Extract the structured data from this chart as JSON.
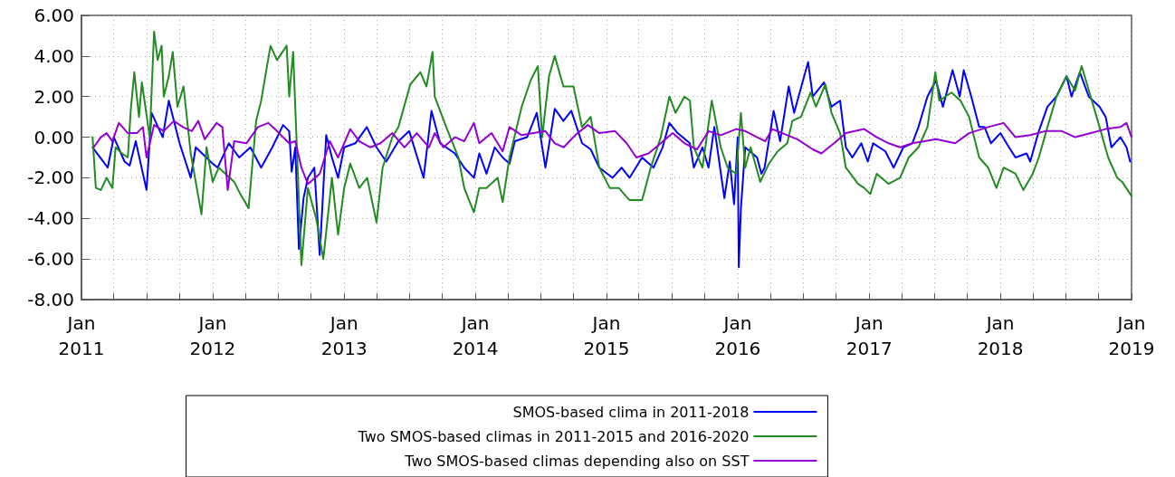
{
  "chart_data": {
    "type": "line",
    "xlim": [
      "2011-01-01",
      "2019-01-01"
    ],
    "xticks": [
      {
        "value": "2011-01-01",
        "label": "Jan 2011"
      },
      {
        "value": "2011-04-01",
        "label": null
      },
      {
        "value": "2011-07-01",
        "label": null
      },
      {
        "value": "2011-10-01",
        "label": null
      },
      {
        "value": "2012-01-01",
        "label": "Jan 2012"
      },
      {
        "value": "2012-04-01",
        "label": null
      },
      {
        "value": "2012-07-01",
        "label": null
      },
      {
        "value": "2012-10-01",
        "label": null
      },
      {
        "value": "2013-01-01",
        "label": "Jan 2013"
      },
      {
        "value": "2013-04-01",
        "label": null
      },
      {
        "value": "2013-07-01",
        "label": null
      },
      {
        "value": "2013-10-01",
        "label": null
      },
      {
        "value": "2014-01-01",
        "label": "Jan 2014"
      },
      {
        "value": "2014-04-01",
        "label": null
      },
      {
        "value": "2014-07-01",
        "label": null
      },
      {
        "value": "2014-10-01",
        "label": null
      },
      {
        "value": "2015-01-01",
        "label": "Jan 2015"
      },
      {
        "value": "2015-04-01",
        "label": null
      },
      {
        "value": "2015-07-01",
        "label": null
      },
      {
        "value": "2015-10-01",
        "label": null
      },
      {
        "value": "2016-01-01",
        "label": "Jan 2016"
      },
      {
        "value": "2016-04-01",
        "label": null
      },
      {
        "value": "2016-07-01",
        "label": null
      },
      {
        "value": "2016-10-01",
        "label": null
      },
      {
        "value": "2017-01-01",
        "label": "Jan 2017"
      },
      {
        "value": "2017-04-01",
        "label": null
      },
      {
        "value": "2017-07-01",
        "label": null
      },
      {
        "value": "2017-10-01",
        "label": null
      },
      {
        "value": "2018-01-01",
        "label": "Jan 2018"
      },
      {
        "value": "2018-04-01",
        "label": null
      },
      {
        "value": "2018-07-01",
        "label": null
      },
      {
        "value": "2018-10-01",
        "label": null
      },
      {
        "value": "2019-01-01",
        "label": "Jan 2019"
      }
    ],
    "ylim": [
      -8,
      6
    ],
    "yticks": [
      {
        "value": -8,
        "label": "-8.00"
      },
      {
        "value": -6,
        "label": "-6.00"
      },
      {
        "value": -4,
        "label": "-4.00"
      },
      {
        "value": -2,
        "label": "-2.00"
      },
      {
        "value": 0,
        "label": "0.00"
      },
      {
        "value": 2,
        "label": "2.00"
      },
      {
        "value": 4,
        "label": "4.00"
      },
      {
        "value": 6,
        "label": "6.00"
      }
    ],
    "grid": true,
    "legend": "bottom",
    "marker": "none",
    "line_style": "solid",
    "series": [
      {
        "name": "SMOS-based clima in 2011-2018",
        "color": "#0000ff",
        "x": [
          "2011-02-01",
          "2011-03-15",
          "2011-04-01",
          "2011-05-01",
          "2011-05-15",
          "2011-06-01",
          "2011-07-01",
          "2011-07-15",
          "2011-08-15",
          "2011-09-01",
          "2011-10-01",
          "2011-11-01",
          "2011-11-15",
          "2012-01-01",
          "2012-01-15",
          "2012-02-15",
          "2012-03-15",
          "2012-04-15",
          "2012-05-15",
          "2012-06-15",
          "2012-07-15",
          "2012-08-01",
          "2012-08-08",
          "2012-08-18",
          "2012-08-28",
          "2012-09-10",
          "2012-09-22",
          "2012-10-10",
          "2012-10-25",
          "2012-11-12",
          "2012-11-28",
          "2012-12-15",
          "2013-01-01",
          "2013-02-01",
          "2013-03-05",
          "2013-04-01",
          "2013-04-28",
          "2013-06-01",
          "2013-07-01",
          "2013-08-10",
          "2013-09-01",
          "2013-09-25",
          "2013-11-05",
          "2013-12-01",
          "2013-12-28",
          "2014-01-12",
          "2014-02-01",
          "2014-02-24",
          "2014-03-18",
          "2014-04-06",
          "2014-04-21",
          "2014-05-25",
          "2014-06-21",
          "2014-07-15",
          "2014-08-10",
          "2014-09-03",
          "2014-09-25",
          "2014-10-25",
          "2014-11-18",
          "2014-12-12",
          "2015-01-18",
          "2015-02-12",
          "2015-03-06",
          "2015-04-10",
          "2015-05-12",
          "2015-06-06",
          "2015-06-25",
          "2015-07-18",
          "2015-08-21",
          "2015-09-01",
          "2015-09-25",
          "2015-10-12",
          "2015-10-28",
          "2015-11-25",
          "2015-12-10",
          "2015-12-22",
          "2016-01-01",
          "2016-01-04",
          "2016-01-10",
          "2016-01-22",
          "2016-02-24",
          "2016-03-07",
          "2016-03-16",
          "2016-04-10",
          "2016-04-28",
          "2016-05-22",
          "2016-06-06",
          "2016-07-04",
          "2016-07-15",
          "2016-07-28",
          "2016-08-28",
          "2016-09-18",
          "2016-10-12",
          "2016-10-28",
          "2016-11-15",
          "2016-12-10",
          "2016-12-28",
          "2017-01-12",
          "2017-02-15",
          "2017-03-10",
          "2017-04-06",
          "2017-05-01",
          "2017-05-18",
          "2017-06-12",
          "2017-07-06",
          "2017-07-25",
          "2017-08-21",
          "2017-09-10",
          "2017-09-21",
          "2017-10-12",
          "2017-11-03",
          "2017-11-18",
          "2017-12-06",
          "2018-01-01",
          "2018-01-25",
          "2018-02-12",
          "2018-03-15",
          "2018-03-25",
          "2018-04-18",
          "2018-05-12",
          "2018-06-06",
          "2018-07-04",
          "2018-07-18",
          "2018-08-10",
          "2018-09-04",
          "2018-10-04",
          "2018-10-21",
          "2018-11-06",
          "2018-12-01",
          "2018-12-18",
          "2018-12-28"
        ],
        "values": [
          -0.5,
          -1.5,
          0,
          -1.2,
          -1.4,
          -0.2,
          -2.6,
          1.2,
          0,
          1.8,
          -0.3,
          -2.0,
          -0.5,
          -1.3,
          -1.5,
          -0.3,
          -1.0,
          -0.5,
          -1.5,
          -0.5,
          0.6,
          0.3,
          -1.7,
          -0.5,
          -5.5,
          -3,
          -2,
          -1.5,
          -5.8,
          0.1,
          -1.0,
          -2,
          -0.5,
          -0.3,
          0.5,
          -0.5,
          -1.2,
          -0.2,
          0.3,
          -2,
          1.3,
          -0.3,
          -0.8,
          -1.5,
          -2.0,
          -0.8,
          -1.8,
          -0.5,
          -1.0,
          -1.3,
          -0.2,
          0.0,
          1.2,
          -1.5,
          1.4,
          0.8,
          1.3,
          -0.3,
          -0.6,
          -1.5,
          -2.0,
          -1.5,
          -2.0,
          -1.0,
          -1.5,
          -0.5,
          0.7,
          0.2,
          -0.3,
          -1.5,
          -0.5,
          -1.5,
          0.5,
          -3.0,
          -1.2,
          -3.3,
          0,
          -6.4,
          -3.5,
          -0.5,
          -1.0,
          -1.8,
          -1.5,
          1.3,
          -0.2,
          2.5,
          1.2,
          3.0,
          3.7,
          2.0,
          2.7,
          1.5,
          1.8,
          -0.5,
          -1.0,
          -0.3,
          -1.2,
          -0.3,
          -0.7,
          -1.5,
          -0.5,
          -0.3,
          0.5,
          2.0,
          2.8,
          1.5,
          3.3,
          2.0,
          3.3,
          2.0,
          0.5,
          0.5,
          -0.3,
          0.2,
          -0.5,
          -1.0,
          -0.8,
          -1.2,
          0.3,
          1.5,
          2.0,
          3.0,
          2.0,
          3.2,
          2.0,
          1.5,
          1.0,
          -0.5,
          0.0,
          -0.5,
          -1.2
        ]
      },
      {
        "name": "Two SMOS-based climas in 2011-2015 and 2016-2020",
        "color": "#228b22",
        "x": [
          "2011-02-01",
          "2011-02-10",
          "2011-02-24",
          "2011-03-12",
          "2011-03-28",
          "2011-04-06",
          "2011-04-24",
          "2011-05-10",
          "2011-05-18",
          "2011-05-28",
          "2011-06-10",
          "2011-06-18",
          "2011-07-10",
          "2011-07-22",
          "2011-08-01",
          "2011-08-12",
          "2011-08-18",
          "2011-09-01",
          "2011-09-12",
          "2011-09-25",
          "2011-10-12",
          "2011-11-01",
          "2011-12-01",
          "2011-12-15",
          "2012-01-01",
          "2012-01-18",
          "2012-03-01",
          "2012-03-18",
          "2012-04-10",
          "2012-05-01",
          "2012-05-15",
          "2012-06-10",
          "2012-06-28",
          "2012-07-25",
          "2012-08-01",
          "2012-08-12",
          "2012-09-04",
          "2012-09-22",
          "2012-10-15",
          "2012-11-04",
          "2012-11-28",
          "2012-12-15",
          "2013-01-01",
          "2013-01-18",
          "2013-02-12",
          "2013-03-06",
          "2013-04-01",
          "2013-04-18",
          "2013-05-15",
          "2013-06-01",
          "2013-07-04",
          "2013-08-01",
          "2013-08-18",
          "2013-09-04",
          "2013-09-10",
          "2013-10-12",
          "2013-11-15",
          "2013-12-01",
          "2013-12-28",
          "2014-01-12",
          "2014-02-01",
          "2014-03-04",
          "2014-03-18",
          "2014-04-06",
          "2014-05-10",
          "2014-06-04",
          "2014-06-24",
          "2014-07-06",
          "2014-07-25",
          "2014-08-10",
          "2014-09-03",
          "2014-10-01",
          "2014-10-25",
          "2014-11-18",
          "2014-12-12",
          "2015-01-10",
          "2015-02-04",
          "2015-03-06",
          "2015-04-10",
          "2015-05-04",
          "2015-06-01",
          "2015-06-25",
          "2015-07-12",
          "2015-08-06",
          "2015-08-21",
          "2015-09-01",
          "2015-09-25",
          "2015-10-21",
          "2015-11-15",
          "2015-12-04",
          "2015-12-28",
          "2016-01-10",
          "2016-01-22",
          "2016-02-06",
          "2016-03-04",
          "2016-03-28",
          "2016-04-21",
          "2016-05-18",
          "2016-06-01",
          "2016-06-25",
          "2016-07-22",
          "2016-08-06",
          "2016-09-01",
          "2016-09-18",
          "2016-10-12",
          "2016-10-28",
          "2016-12-01",
          "2016-12-18",
          "2017-01-04",
          "2017-01-22",
          "2017-02-24",
          "2017-03-28",
          "2017-04-21",
          "2017-05-18",
          "2017-06-12",
          "2017-07-04",
          "2017-07-15",
          "2017-08-18",
          "2017-09-12",
          "2017-10-06",
          "2017-11-03",
          "2017-11-28",
          "2017-12-21",
          "2018-01-10",
          "2018-02-12",
          "2018-03-06",
          "2018-04-01",
          "2018-04-18",
          "2018-05-12",
          "2018-06-06",
          "2018-07-04",
          "2018-07-28",
          "2018-08-15",
          "2018-09-01",
          "2018-10-04",
          "2018-10-28",
          "2018-11-22",
          "2018-12-06",
          "2019-01-01"
        ],
        "values": [
          0,
          -2.5,
          -2.6,
          -2.0,
          -2.5,
          -0.5,
          -0.8,
          -1.0,
          1.3,
          3.2,
          1.0,
          2.7,
          0,
          5.2,
          3.8,
          4.5,
          2.0,
          3.0,
          4.2,
          1.5,
          2.5,
          -0.8,
          -3.8,
          -0.5,
          -2.2,
          -1.5,
          -2.2,
          -2.8,
          -3.5,
          0.8,
          1.8,
          4.5,
          3.8,
          4.5,
          2.0,
          4.2,
          -6.3,
          -2.5,
          -4.0,
          -6.0,
          -2.0,
          -4.8,
          -2.5,
          -1.3,
          -2.5,
          -2.0,
          -4.2,
          -1.5,
          0,
          0.5,
          2.6,
          3.2,
          2.5,
          4.2,
          2.0,
          0.5,
          -1.0,
          -2.5,
          -3.7,
          -2.5,
          -2.5,
          -2.0,
          -3.2,
          -1.0,
          1.5,
          2.8,
          3.5,
          0,
          3.0,
          4.0,
          2.5,
          2.5,
          0.5,
          1.0,
          -1.5,
          -2.5,
          -2.5,
          -3.1,
          -3.1,
          -1.5,
          0,
          2.0,
          1.2,
          2.0,
          1.8,
          -0.5,
          -1.5,
          1.8,
          -0.5,
          -1.5,
          -1.8,
          1.2,
          -1.5,
          -0.5,
          -2.2,
          -1.3,
          -0.7,
          -0.3,
          0.8,
          1.0,
          2.2,
          1.5,
          2.6,
          1.2,
          0.2,
          -1.5,
          -2.3,
          -2.5,
          -2.8,
          -1.8,
          -2.3,
          -2.0,
          -1.0,
          -0.5,
          0.5,
          3.2,
          1.8,
          2.2,
          1.8,
          1.0,
          -1.0,
          -1.5,
          -2.5,
          -1.5,
          -1.8,
          -2.6,
          -1.8,
          -1.0,
          0.5,
          2.0,
          3.0,
          2.3,
          3.5,
          2.5,
          0.5,
          -1.0,
          -2.0,
          -2.2,
          -2.9
        ]
      },
      {
        "name": "Two SMOS-based climas depending also on SST",
        "color": "#9400d3",
        "x": [
          "2011-02-04",
          "2011-02-24",
          "2011-03-12",
          "2011-03-28",
          "2011-04-15",
          "2011-05-10",
          "2011-06-04",
          "2011-06-21",
          "2011-07-01",
          "2011-07-22",
          "2011-08-18",
          "2011-09-15",
          "2011-10-10",
          "2011-11-04",
          "2011-11-22",
          "2011-12-10",
          "2012-01-12",
          "2012-01-28",
          "2012-02-12",
          "2012-03-01",
          "2012-04-04",
          "2012-05-06",
          "2012-06-04",
          "2012-06-28",
          "2012-08-01",
          "2012-08-18",
          "2012-09-04",
          "2012-09-22",
          "2012-10-25",
          "2012-11-22",
          "2012-12-15",
          "2013-01-18",
          "2013-02-12",
          "2013-03-15",
          "2013-04-12",
          "2013-05-15",
          "2013-06-18",
          "2013-07-22",
          "2013-08-25",
          "2013-09-10",
          "2013-10-04",
          "2013-11-06",
          "2013-12-01",
          "2013-12-28",
          "2014-01-12",
          "2014-02-15",
          "2014-03-18",
          "2014-04-06",
          "2014-05-10",
          "2014-06-12",
          "2014-07-15",
          "2014-08-10",
          "2014-09-04",
          "2014-10-06",
          "2014-11-10",
          "2014-12-12",
          "2015-01-25",
          "2015-02-26",
          "2015-03-25",
          "2015-04-28",
          "2015-06-01",
          "2015-07-04",
          "2015-08-06",
          "2015-09-10",
          "2015-10-12",
          "2015-11-15",
          "2015-12-28",
          "2016-01-22",
          "2016-02-24",
          "2016-03-18",
          "2016-04-06",
          "2016-05-04",
          "2016-06-15",
          "2016-07-28",
          "2016-08-21",
          "2016-09-25",
          "2016-10-28",
          "2016-12-18",
          "2017-01-22",
          "2017-02-24",
          "2017-03-28",
          "2017-05-01",
          "2017-06-04",
          "2017-07-06",
          "2017-08-28",
          "2017-10-06",
          "2017-11-28",
          "2018-01-10",
          "2018-02-12",
          "2018-03-25",
          "2018-05-06",
          "2018-06-21",
          "2018-07-28",
          "2018-09-10",
          "2018-10-21",
          "2018-12-01",
          "2018-12-18",
          "2019-01-01"
        ],
        "values": [
          -0.5,
          0.0,
          0.2,
          -0.2,
          0.7,
          0.2,
          0.2,
          0.5,
          -1.0,
          0.6,
          0.3,
          0.8,
          0.5,
          0.3,
          0.8,
          -0.1,
          0.7,
          0.5,
          -2.6,
          -0.2,
          -0.3,
          0.5,
          0.7,
          0.3,
          -0.3,
          -0.2,
          -1.5,
          -2.3,
          -1.8,
          -0.2,
          -1.0,
          0.4,
          -0.2,
          -0.5,
          -0.3,
          0.2,
          -0.5,
          0.2,
          -0.5,
          0.2,
          -0.5,
          0.0,
          -0.2,
          0.7,
          -0.3,
          0.2,
          -0.7,
          0.5,
          0.1,
          0.2,
          0.3,
          -0.3,
          -0.5,
          0.1,
          0.6,
          0.2,
          0.3,
          -0.3,
          -1.0,
          -0.8,
          -0.3,
          0.2,
          -0.3,
          -0.6,
          0.3,
          0.1,
          0.4,
          0.3,
          0.0,
          -0.2,
          0.4,
          0.2,
          -0.1,
          -0.6,
          -0.8,
          -0.3,
          0.2,
          0.4,
          0.0,
          -0.3,
          -0.5,
          -0.3,
          -0.2,
          -0.1,
          -0.3,
          0.2,
          0.5,
          0.7,
          0.0,
          0.1,
          0.3,
          0.3,
          0.0,
          0.2,
          0.4,
          0.5,
          0.7,
          0.0
        ]
      }
    ]
  }
}
